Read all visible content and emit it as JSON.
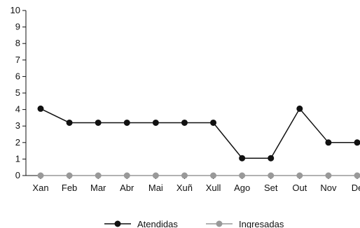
{
  "chart_data": {
    "type": "line",
    "title": "",
    "xlabel": "",
    "ylabel": "",
    "categories": [
      "Xan",
      "Feb",
      "Mar",
      "Abr",
      "Mai",
      "Xuñ",
      "Xull",
      "Ago",
      "Set",
      "Out",
      "Nov",
      "De"
    ],
    "ylim": [
      0,
      10
    ],
    "yticks": [
      0,
      1,
      2,
      3,
      4,
      5,
      6,
      7,
      8,
      9,
      10
    ],
    "grid": false,
    "legend_position": "bottom",
    "series": [
      {
        "name": "Atendidas",
        "color": "#111111",
        "values": [
          4.05,
          3.2,
          3.2,
          3.2,
          3.2,
          3.2,
          3.2,
          1.05,
          1.05,
          4.05,
          2.0,
          2.0
        ]
      },
      {
        "name": "Ingresadas",
        "color": "#999999",
        "values": [
          0,
          0,
          0,
          0,
          0,
          0,
          0,
          0,
          0,
          0,
          0,
          0
        ]
      }
    ]
  }
}
